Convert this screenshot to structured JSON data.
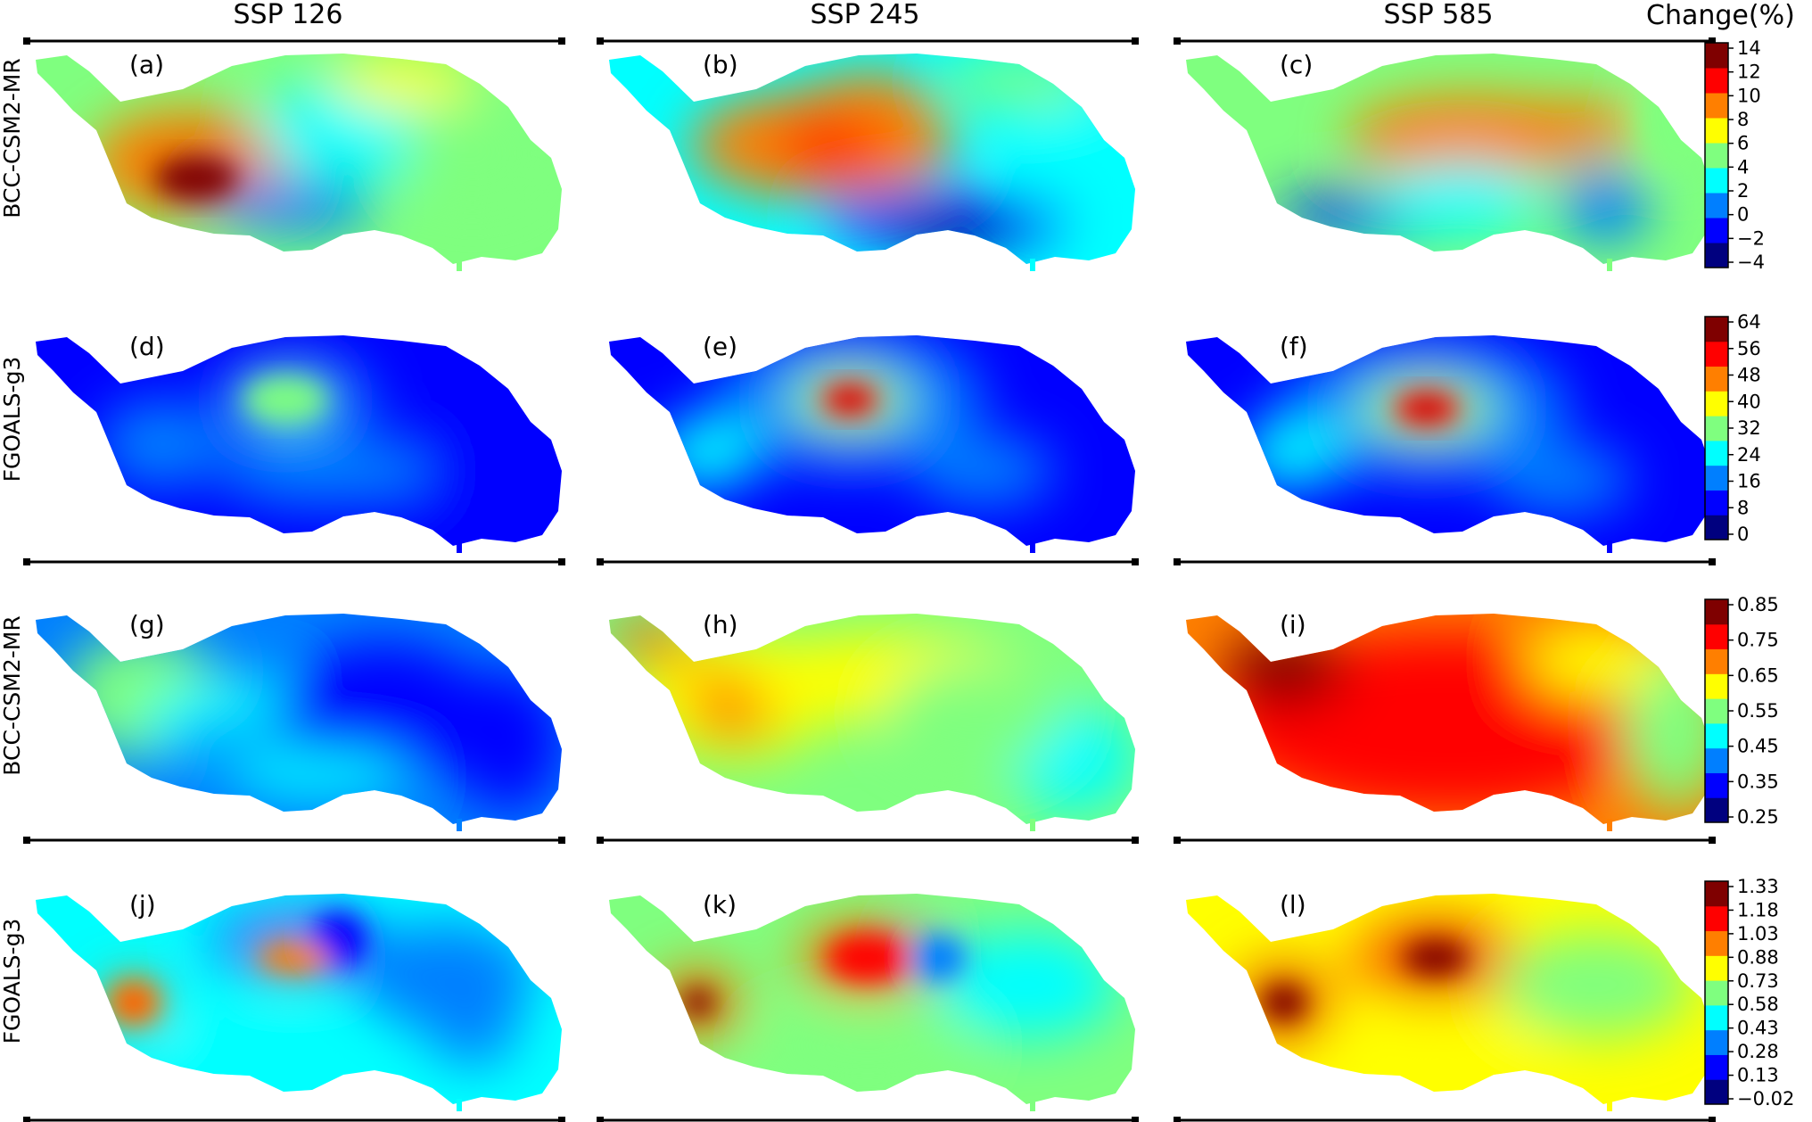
{
  "figure": {
    "columns": [
      "SSP 126",
      "SSP 245",
      "SSP 585"
    ],
    "rows": [
      "BCC-CSM2-MR",
      "FGOALS-g3",
      "BCC-CSM2-MR",
      "FGOALS-g3"
    ],
    "colorbar_title": "Change(%)",
    "colormap": [
      "#00007f",
      "#0000ff",
      "#007fff",
      "#00ffff",
      "#7fff7f",
      "#ffff00",
      "#ff7f00",
      "#ff0000",
      "#7f0000"
    ]
  },
  "chart_data": [
    {
      "type": "heatmap",
      "panel": "(a)",
      "scenario": "SSP 126",
      "model": "BCC-CSM2-MR",
      "colorbar_ticks": [
        "14",
        "12",
        "10",
        "8",
        "6",
        "4",
        "2",
        "0",
        "−2",
        "−4"
      ],
      "range": [
        -4,
        14
      ]
    },
    {
      "type": "heatmap",
      "panel": "(b)",
      "scenario": "SSP 245",
      "model": "BCC-CSM2-MR",
      "range": [
        -4,
        14
      ]
    },
    {
      "type": "heatmap",
      "panel": "(c)",
      "scenario": "SSP 585",
      "model": "BCC-CSM2-MR",
      "range": [
        -4,
        14
      ]
    },
    {
      "type": "heatmap",
      "panel": "(d)",
      "scenario": "SSP 126",
      "model": "FGOALS-g3",
      "colorbar_ticks": [
        "64",
        "56",
        "48",
        "40",
        "32",
        "24",
        "16",
        "8",
        "0"
      ],
      "range": [
        -4,
        68
      ]
    },
    {
      "type": "heatmap",
      "panel": "(e)",
      "scenario": "SSP 245",
      "model": "FGOALS-g3",
      "range": [
        -4,
        68
      ]
    },
    {
      "type": "heatmap",
      "panel": "(f)",
      "scenario": "SSP 585",
      "model": "FGOALS-g3",
      "range": [
        -4,
        68
      ]
    },
    {
      "type": "heatmap",
      "panel": "(g)",
      "scenario": "SSP 126",
      "model": "BCC-CSM2-MR",
      "colorbar_ticks": [
        "0.85",
        "0.75",
        "0.65",
        "0.55",
        "0.45",
        "0.35",
        "0.25"
      ],
      "range": [
        0.25,
        0.9
      ]
    },
    {
      "type": "heatmap",
      "panel": "(h)",
      "scenario": "SSP 245",
      "model": "BCC-CSM2-MR",
      "range": [
        0.25,
        0.9
      ]
    },
    {
      "type": "heatmap",
      "panel": "(i)",
      "scenario": "SSP 585",
      "model": "BCC-CSM2-MR",
      "range": [
        0.25,
        0.9
      ]
    },
    {
      "type": "heatmap",
      "panel": "(j)",
      "scenario": "SSP 126",
      "model": "FGOALS-g3",
      "colorbar_ticks": [
        "1.33",
        "1.18",
        "1.03",
        "0.88",
        "0.73",
        "0.58",
        "0.43",
        "0.28",
        "0.13",
        "−0.02"
      ],
      "range": [
        -0.02,
        1.33
      ]
    },
    {
      "type": "heatmap",
      "panel": "(k)",
      "scenario": "SSP 245",
      "model": "FGOALS-g3",
      "range": [
        -0.02,
        1.33
      ]
    },
    {
      "type": "heatmap",
      "panel": "(l)",
      "scenario": "SSP 585",
      "model": "FGOALS-g3",
      "range": [
        -0.02,
        1.33
      ]
    }
  ]
}
